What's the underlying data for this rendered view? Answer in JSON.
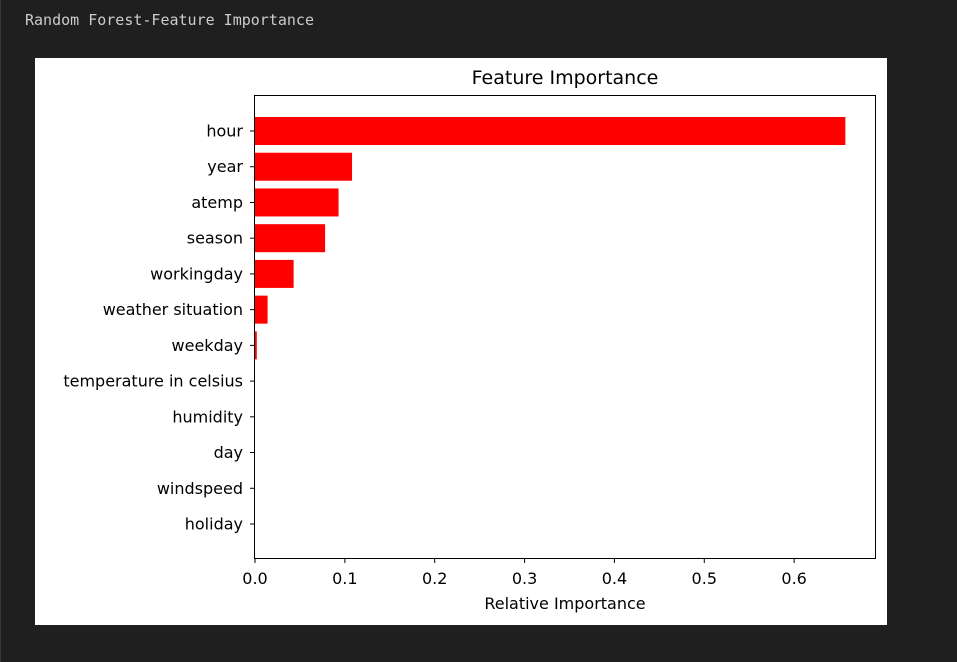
{
  "cell": {
    "output_text": "Random Forest-Feature Importance"
  },
  "chart_data": {
    "type": "bar",
    "orientation": "horizontal",
    "title": "Feature Importance",
    "xlabel": "Relative Importance",
    "ylabel": "",
    "categories": [
      "hour",
      "year",
      "atemp",
      "season",
      "workingday",
      "weather situation",
      "weekday",
      "temperature in celsius",
      "humidity",
      "day",
      "windspeed",
      "holiday"
    ],
    "values": [
      0.657,
      0.108,
      0.093,
      0.078,
      0.043,
      0.014,
      0.002,
      0.0,
      0.0,
      0.0,
      0.0,
      0.0
    ],
    "xlim": [
      0,
      0.69
    ],
    "xticks": [
      "0.0",
      "0.1",
      "0.2",
      "0.3",
      "0.4",
      "0.5",
      "0.6"
    ],
    "bar_color": "#ff0000",
    "grid": false,
    "legend": "none"
  }
}
